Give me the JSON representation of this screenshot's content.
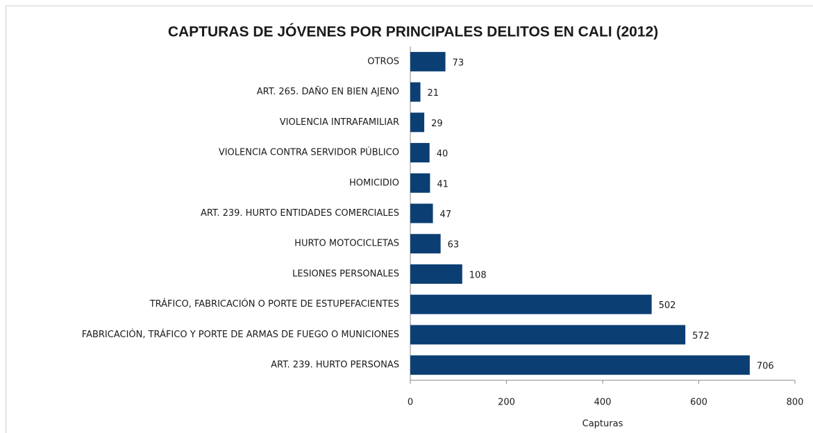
{
  "chart_data": {
    "type": "barh",
    "title": "CAPTURAS DE JÓVENES POR PRINCIPALES DELITOS EN CALI (2012)",
    "x_label": "Capturas",
    "categories": [
      "OTROS",
      "ART. 265. DAÑO EN BIEN AJENO",
      "VIOLENCIA INTRAFAMILIAR",
      "VIOLENCIA CONTRA SERVIDOR PÚBLICO",
      "HOMICIDIO",
      "ART. 239. HURTO ENTIDADES COMERCIALES",
      "HURTO MOTOCICLETAS",
      "LESIONES PERSONALES",
      "TRÁFICO, FABRICACIÓN O PORTE DE ESTUPEFACIENTES",
      "FABRICACIÓN, TRÁFICO Y PORTE DE ARMAS DE FUEGO O MUNICIONES",
      "ART. 239. HURTO PERSONAS"
    ],
    "values": [
      73,
      21,
      29,
      40,
      41,
      47,
      63,
      108,
      502,
      572,
      706
    ],
    "color": "#0b3f74",
    "xlim": [
      0,
      800
    ],
    "xticks": [
      0,
      200,
      400,
      600,
      800
    ]
  }
}
